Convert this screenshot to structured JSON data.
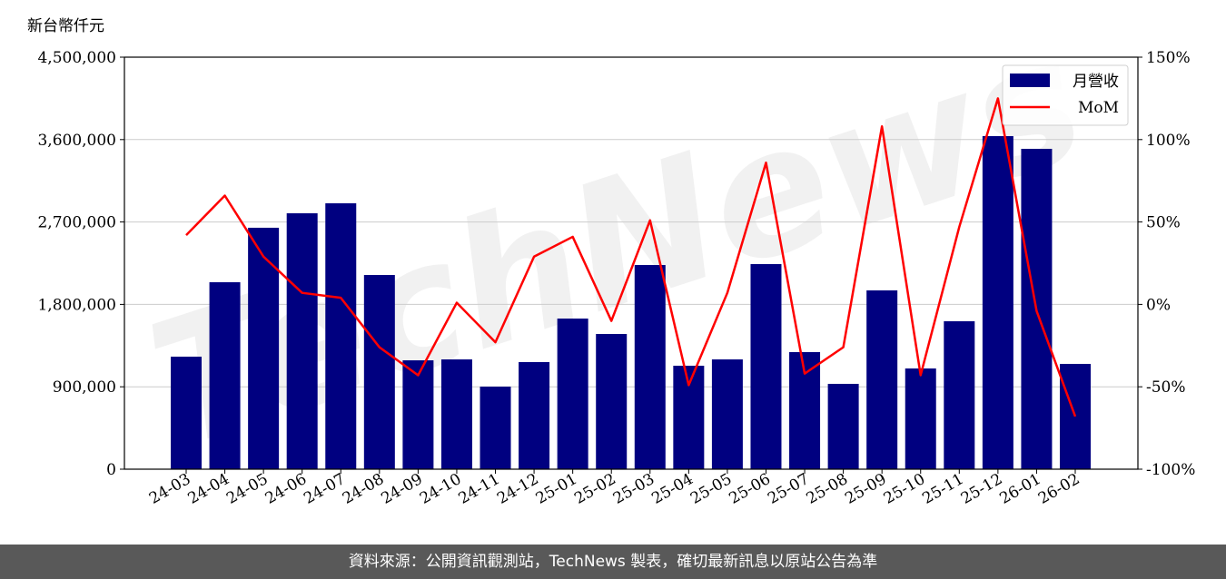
{
  "chart_data": {
    "type": "bar",
    "title": "",
    "ylabel": "新台幣仟元",
    "categories": [
      "24-03",
      "24-04",
      "24-05",
      "24-06",
      "24-07",
      "24-08",
      "24-09",
      "24-10",
      "24-11",
      "24-12",
      "25-01",
      "25-02",
      "25-03",
      "25-04",
      "25-05",
      "25-06",
      "25-07",
      "25-08",
      "25-09",
      "25-10",
      "25-11",
      "25-12",
      "26-01",
      "26-02"
    ],
    "series": [
      {
        "name": "月營收",
        "type": "bar",
        "axis": "left",
        "color": "#000080",
        "values": [
          1229000,
          2042000,
          2637000,
          2795000,
          2904000,
          2121000,
          1189000,
          1199000,
          902000,
          1170000,
          1645000,
          1477000,
          2230000,
          1130000,
          1199000,
          2240000,
          1279000,
          932000,
          1953000,
          1100000,
          1616000,
          3638000,
          3499000,
          1150000
        ]
      },
      {
        "name": "MoM",
        "type": "line",
        "axis": "right",
        "color": "#ff0000",
        "values": [
          42,
          66,
          29,
          7,
          4,
          -26,
          -43,
          1,
          -23,
          29,
          41,
          -10,
          51,
          -49,
          7,
          86,
          -42,
          -26,
          108,
          -43,
          47,
          125,
          -4,
          -68
        ]
      }
    ],
    "ylim": [
      0,
      4500000
    ],
    "yticks": [
      "0",
      "900,000",
      "1,800,000",
      "2,700,000",
      "3,600,000",
      "4,500,000"
    ],
    "y2lim": [
      -100,
      150
    ],
    "y2ticks": [
      "-100%",
      "-50%",
      "0%",
      "50%",
      "100%",
      "150%"
    ],
    "grid": true,
    "legend_position": "top-right"
  },
  "watermark": "TechNews",
  "footer": "資料來源：公開資訊觀測站，TechNews 製表，確切最新訊息以原站公告為準"
}
